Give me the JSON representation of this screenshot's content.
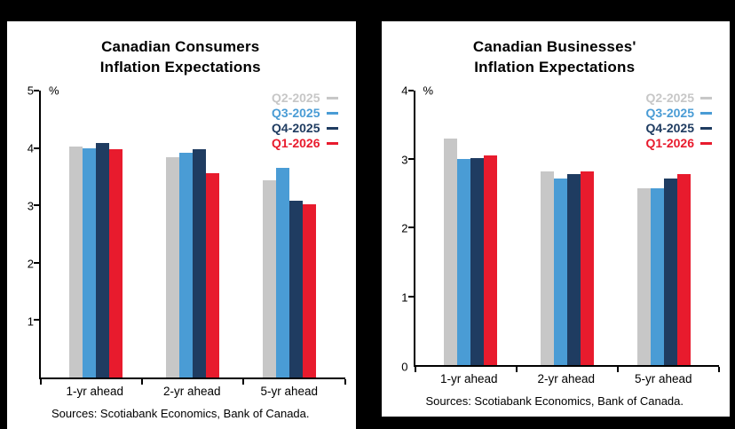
{
  "chart_data": [
    {
      "type": "bar",
      "title": "Canadian Consumers Inflation Expectations",
      "title_lines": [
        "Canadian Consumers",
        "Inflation Expectations"
      ],
      "ylabel": "%",
      "xlabel": "",
      "categories": [
        "1-yr ahead",
        "2-yr ahead",
        "5-yr ahead"
      ],
      "series": [
        {
          "name": "Q2-2025",
          "color": "#c7c7c7",
          "values": [
            4.03,
            3.84,
            3.44
          ]
        },
        {
          "name": "Q3-2025",
          "color": "#4a9cd5",
          "values": [
            3.99,
            3.92,
            3.65
          ]
        },
        {
          "name": "Q4-2025",
          "color": "#1f3c61",
          "values": [
            4.09,
            3.97,
            3.08
          ]
        },
        {
          "name": "Q1-2026",
          "color": "#e81b2d",
          "values": [
            3.97,
            3.56,
            3.01
          ]
        }
      ],
      "ylim": [
        0,
        5
      ],
      "yticks": [
        1,
        2,
        3,
        4,
        5
      ],
      "grid": false,
      "legend_position": "top-right",
      "source": "Sources: Scotiabank Economics, Bank of Canada."
    },
    {
      "type": "bar",
      "title": "Canadian Businesses' Inflation Expectations",
      "title_lines": [
        "Canadian Businesses'",
        "Inflation Expectations"
      ],
      "ylabel": "%",
      "xlabel": "",
      "categories": [
        "1-yr ahead",
        "2-yr ahead",
        "5-yr ahead"
      ],
      "series": [
        {
          "name": "Q2-2025",
          "color": "#c7c7c7",
          "values": [
            3.3,
            2.82,
            2.58
          ]
        },
        {
          "name": "Q3-2025",
          "color": "#4a9cd5",
          "values": [
            3.0,
            2.72,
            2.58
          ]
        },
        {
          "name": "Q4-2025",
          "color": "#1f3c61",
          "values": [
            3.02,
            2.78,
            2.72
          ]
        },
        {
          "name": "Q1-2026",
          "color": "#e81b2d",
          "values": [
            3.05,
            2.82,
            2.78
          ]
        }
      ],
      "ylim": [
        0,
        4
      ],
      "yticks": [
        0,
        1,
        2,
        3,
        4
      ],
      "grid": false,
      "legend_position": "top-right",
      "source": "Sources: Scotiabank Economics, Bank of Canada."
    }
  ]
}
